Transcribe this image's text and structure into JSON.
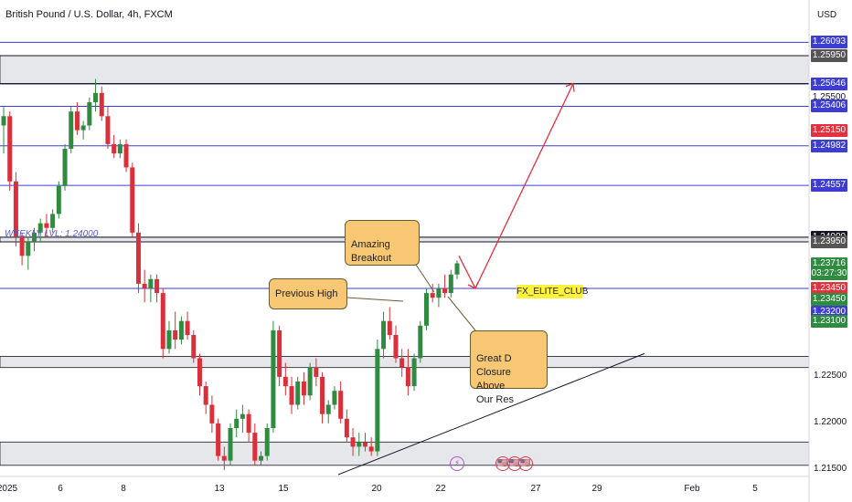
{
  "header": {
    "title": "British Pound / U.S. Dollar, 4h, FXCM",
    "currency": "USD"
  },
  "colors": {
    "bull": "#2e8b3f",
    "bear": "#d9303b",
    "blue_line": "#3d3dd6",
    "black_line": "#131722",
    "zone": "#e6e7ea",
    "arrow": "#e5303d",
    "callout_bg": "#f7c773",
    "club_bg": "#fff23b"
  },
  "price_axis": {
    "labels": [
      "1.22500",
      "1.22000",
      "1.21500"
    ],
    "badges": [
      {
        "text": "1.26093",
        "price": 1.26093,
        "color": "#3d3dd6"
      },
      {
        "text": "1.25950",
        "price": 1.2595,
        "color": "#555555"
      },
      {
        "text": "1.25650",
        "price": 1.2565,
        "color": "#555555"
      },
      {
        "text": "1.25646",
        "price": 1.25646,
        "color": "#3d3dd6"
      },
      {
        "text": "1.25500",
        "price": 1.255,
        "color": "#ffffff"
      },
      {
        "text": "1.25406",
        "price": 1.25406,
        "color": "#3d3dd6"
      },
      {
        "text": "1.25150",
        "price": 1.2515,
        "color": "#e5303d"
      },
      {
        "text": "1.24982",
        "price": 1.24982,
        "color": "#3d3dd6"
      },
      {
        "text": "1.24557",
        "price": 1.24557,
        "color": "#3d3dd6"
      },
      {
        "text": "1.24000",
        "price": 1.24,
        "color": "#131722"
      },
      {
        "text": "1.23950",
        "price": 1.2395,
        "color": "#555555"
      },
      {
        "text": "1.23716",
        "price": 1.23716,
        "color": "#2e8b3f"
      },
      {
        "text": "03:27:30",
        "price": 1.2361,
        "color": "#2e8b3f"
      },
      {
        "text": "1.23450",
        "price": 1.2345,
        "color": "#e5303d"
      },
      {
        "text": "1.23450",
        "price": 1.2333,
        "color": "#2e8b3f"
      },
      {
        "text": "1.23200",
        "price": 1.232,
        "color": "#3d3dd6"
      },
      {
        "text": "1.23100",
        "price": 1.231,
        "color": "#2e8b3f"
      }
    ]
  },
  "time_axis": {
    "ticks": [
      "2025",
      "6",
      "8",
      "13",
      "15",
      "20",
      "22",
      "27",
      "29",
      "Feb",
      "5"
    ]
  },
  "annotations": {
    "weekly_label": "WEEKLY LVL: 1.24000",
    "previous_high": "Previous High",
    "amazing_breakout": "Amazing\nBreakout",
    "great_d": "Great D\nClosure Above\nOur Res",
    "club": "FX_ELITE_CLUB"
  },
  "events": [
    "⚡",
    "🇺🇸",
    "🇺🇸",
    "🇺🇸"
  ],
  "chart_data": {
    "type": "candlestick",
    "title": "British Pound / U.S. Dollar, 4h, FXCM",
    "ylim": [
      1.2145,
      1.2645
    ],
    "horizontal_lines": {
      "blue": [
        1.26093,
        1.25646,
        1.25406,
        1.24982,
        1.24557,
        1.2345
      ],
      "black": [
        1.2595,
        1.2565,
        1.24,
        1.2395
      ]
    },
    "zones": [
      [
        1.2565,
        1.2595
      ],
      [
        1.2395,
        1.24
      ],
      [
        1.226,
        1.2272
      ],
      [
        1.2155,
        1.218
      ]
    ],
    "candles": [
      [
        1.252,
        1.254,
        1.249,
        1.253
      ],
      [
        1.253,
        1.2535,
        1.245,
        1.246
      ],
      [
        1.246,
        1.247,
        1.239,
        1.24
      ],
      [
        1.24,
        1.2405,
        1.237,
        1.238
      ],
      [
        1.238,
        1.24,
        1.2365,
        1.2395
      ],
      [
        1.2395,
        1.241,
        1.2385,
        1.2405
      ],
      [
        1.2405,
        1.242,
        1.2395,
        1.2415
      ],
      [
        1.2415,
        1.2425,
        1.24,
        1.241
      ],
      [
        1.241,
        1.243,
        1.2405,
        1.2425
      ],
      [
        1.2425,
        1.246,
        1.242,
        1.2455
      ],
      [
        1.2455,
        1.25,
        1.245,
        1.2495
      ],
      [
        1.2495,
        1.254,
        1.249,
        1.2535
      ],
      [
        1.2535,
        1.2545,
        1.251,
        1.2515
      ],
      [
        1.2515,
        1.2525,
        1.2505,
        1.252
      ],
      [
        1.252,
        1.255,
        1.2515,
        1.2545
      ],
      [
        1.2545,
        1.257,
        1.2535,
        1.2555
      ],
      [
        1.2555,
        1.2562,
        1.2525,
        1.253
      ],
      [
        1.253,
        1.254,
        1.2495,
        1.25
      ],
      [
        1.25,
        1.251,
        1.2485,
        1.249
      ],
      [
        1.249,
        1.2505,
        1.2485,
        1.25
      ],
      [
        1.25,
        1.2505,
        1.247,
        1.2475
      ],
      [
        1.2475,
        1.248,
        1.24,
        1.2405
      ],
      [
        1.2405,
        1.2415,
        1.234,
        1.235
      ],
      [
        1.235,
        1.2365,
        1.233,
        1.2345
      ],
      [
        1.2345,
        1.236,
        1.233,
        1.2355
      ],
      [
        1.2355,
        1.236,
        1.233,
        1.234
      ],
      [
        1.234,
        1.2345,
        1.227,
        1.228
      ],
      [
        1.228,
        1.231,
        1.2275,
        1.23
      ],
      [
        1.23,
        1.232,
        1.228,
        1.229
      ],
      [
        1.229,
        1.2315,
        1.2285,
        1.231
      ],
      [
        1.231,
        1.232,
        1.229,
        1.2295
      ],
      [
        1.2295,
        1.23,
        1.2265,
        1.227
      ],
      [
        1.227,
        1.2275,
        1.223,
        1.224
      ],
      [
        1.224,
        1.2245,
        1.221,
        1.222
      ],
      [
        1.222,
        1.223,
        1.219,
        1.22
      ],
      [
        1.22,
        1.2205,
        1.216,
        1.2165
      ],
      [
        1.2165,
        1.2175,
        1.215,
        1.216
      ],
      [
        1.216,
        1.22,
        1.2155,
        1.2195
      ],
      [
        1.2195,
        1.2215,
        1.2185,
        1.2205
      ],
      [
        1.2205,
        1.222,
        1.219,
        1.221
      ],
      [
        1.221,
        1.2215,
        1.218,
        1.219
      ],
      [
        1.219,
        1.22,
        1.2155,
        1.216
      ],
      [
        1.216,
        1.217,
        1.2155,
        1.2165
      ],
      [
        1.2165,
        1.22,
        1.216,
        1.2195
      ],
      [
        1.2195,
        1.231,
        1.219,
        1.23
      ],
      [
        1.23,
        1.2305,
        1.224,
        1.225
      ],
      [
        1.225,
        1.2265,
        1.223,
        1.224
      ],
      [
        1.224,
        1.225,
        1.221,
        1.222
      ],
      [
        1.222,
        1.225,
        1.2215,
        1.2245
      ],
      [
        1.2245,
        1.2255,
        1.222,
        1.223
      ],
      [
        1.223,
        1.2265,
        1.2225,
        1.226
      ],
      [
        1.226,
        1.227,
        1.224,
        1.225
      ],
      [
        1.225,
        1.2255,
        1.22,
        1.221
      ],
      [
        1.221,
        1.2225,
        1.22,
        1.222
      ],
      [
        1.222,
        1.224,
        1.2215,
        1.2235
      ],
      [
        1.2235,
        1.2245,
        1.22,
        1.2205
      ],
      [
        1.2205,
        1.2215,
        1.218,
        1.2185
      ],
      [
        1.2185,
        1.2195,
        1.2165,
        1.2175
      ],
      [
        1.2175,
        1.219,
        1.2165,
        1.218
      ],
      [
        1.218,
        1.219,
        1.217,
        1.2175
      ],
      [
        1.2175,
        1.2185,
        1.2165,
        1.217
      ],
      [
        1.217,
        1.229,
        1.2165,
        1.228
      ],
      [
        1.228,
        1.232,
        1.227,
        1.231
      ],
      [
        1.231,
        1.2325,
        1.229,
        1.2295
      ],
      [
        1.2295,
        1.2305,
        1.2265,
        1.227
      ],
      [
        1.227,
        1.228,
        1.225,
        1.226
      ],
      [
        1.226,
        1.228,
        1.223,
        1.224
      ],
      [
        1.224,
        1.2275,
        1.2235,
        1.227
      ],
      [
        1.227,
        1.231,
        1.2265,
        1.2305
      ],
      [
        1.2305,
        1.2345,
        1.23,
        1.234
      ],
      [
        1.234,
        1.235,
        1.233,
        1.2335
      ],
      [
        1.2335,
        1.235,
        1.2325,
        1.2345
      ],
      [
        1.2345,
        1.236,
        1.2335,
        1.234
      ],
      [
        1.234,
        1.2365,
        1.2335,
        1.236
      ],
      [
        1.236,
        1.2375,
        1.2355,
        1.2372
      ]
    ],
    "forecast_path": [
      [
        1.238,
        1.2345
      ],
      [
        1.2345,
        1.2565
      ]
    ],
    "trendline": [
      1.2145,
      1.2275
    ]
  }
}
